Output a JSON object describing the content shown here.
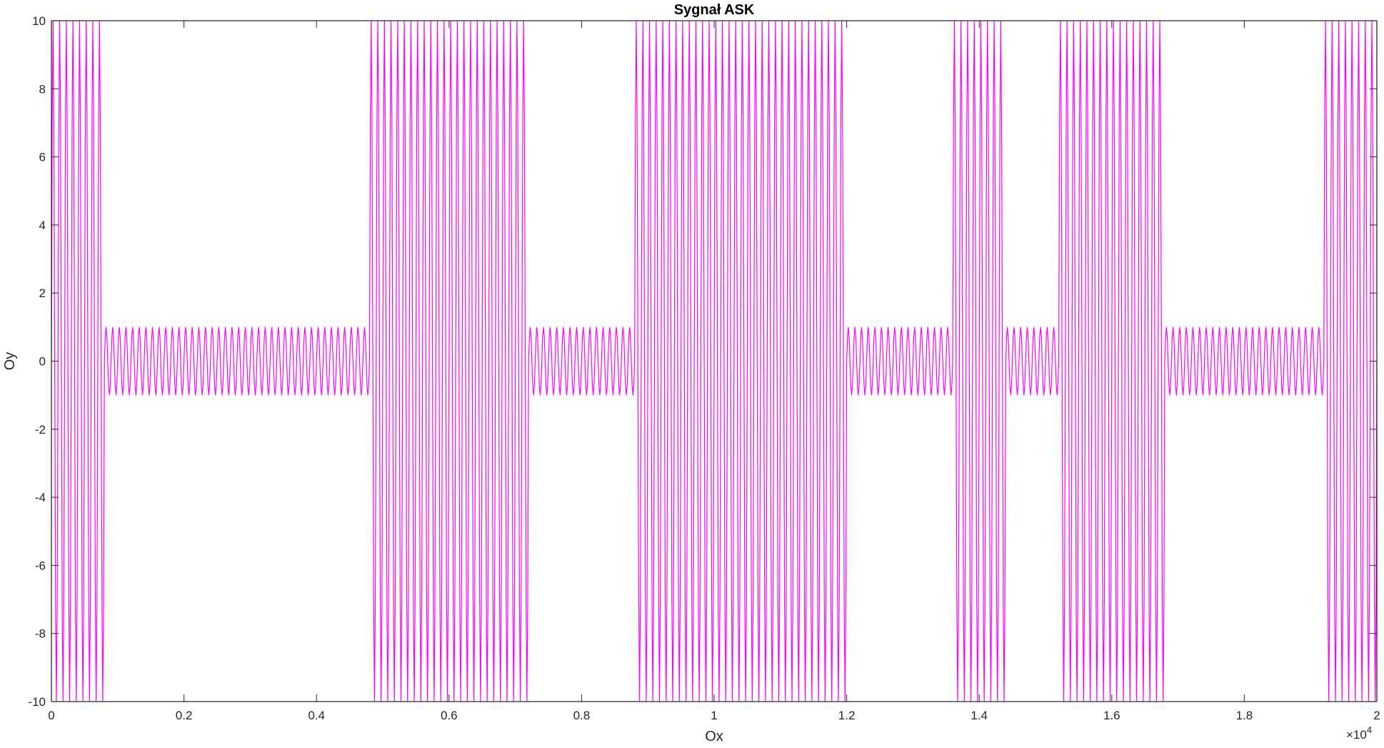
{
  "chart_data": {
    "type": "line",
    "title": "Sygnał ASK",
    "xlabel": "Ox",
    "ylabel": "Oy",
    "xlim": [
      0,
      20000
    ],
    "ylim": [
      -10,
      10
    ],
    "x_ticks": [
      0,
      2000,
      4000,
      6000,
      8000,
      10000,
      12000,
      14000,
      16000,
      18000,
      20000
    ],
    "x_tick_labels": [
      "0",
      "0.2",
      "0.4",
      "0.6",
      "0.8",
      "1",
      "1.2",
      "1.4",
      "1.6",
      "1.8",
      "2"
    ],
    "x_exponent_base": "×10",
    "x_exponent_power": "4",
    "y_ticks": [
      -10,
      -8,
      -6,
      -4,
      -2,
      0,
      2,
      4,
      6,
      8,
      10
    ],
    "y_tick_labels": [
      "-10",
      "-8",
      "-6",
      "-4",
      "-2",
      "0",
      "2",
      "4",
      "6",
      "8",
      "10"
    ],
    "grid": false,
    "series": [
      {
        "color": "#ff00ff",
        "waveform": "sine",
        "cycle_length": 100,
        "segments": [
          {
            "x_start": 0,
            "x_end": 800,
            "amplitude": 10
          },
          {
            "x_start": 800,
            "x_end": 4800,
            "amplitude": 1
          },
          {
            "x_start": 4800,
            "x_end": 7200,
            "amplitude": 10
          },
          {
            "x_start": 7200,
            "x_end": 8800,
            "amplitude": 1
          },
          {
            "x_start": 8800,
            "x_end": 12000,
            "amplitude": 10
          },
          {
            "x_start": 12000,
            "x_end": 13600,
            "amplitude": 1
          },
          {
            "x_start": 13600,
            "x_end": 14400,
            "amplitude": 10
          },
          {
            "x_start": 14400,
            "x_end": 15200,
            "amplitude": 1
          },
          {
            "x_start": 15200,
            "x_end": 16800,
            "amplitude": 10
          },
          {
            "x_start": 16800,
            "x_end": 19200,
            "amplitude": 1
          },
          {
            "x_start": 19200,
            "x_end": 20000,
            "amplitude": 10
          }
        ]
      }
    ]
  }
}
